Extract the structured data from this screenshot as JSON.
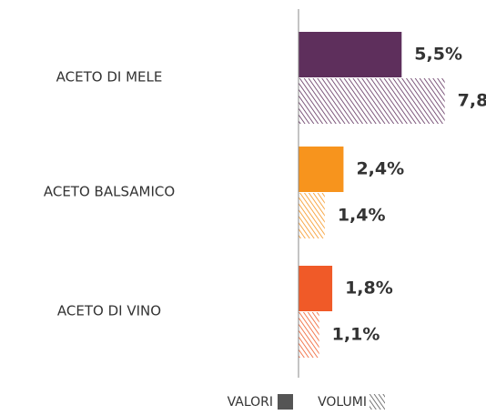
{
  "chart_data": {
    "type": "bar",
    "orientation": "horizontal",
    "categories": [
      "ACETO DI MELE",
      "ACETO BALSAMICO",
      "ACETO DI VINO"
    ],
    "category_colors": [
      "#5e2f5c",
      "#f7941d",
      "#f05a28"
    ],
    "series": [
      {
        "name": "VALORI",
        "color": "#555555",
        "pattern": "solid",
        "values": [
          5.5,
          2.4,
          1.8
        ],
        "value_labels": [
          "5,5%",
          "2,4%",
          "1,8%"
        ]
      },
      {
        "name": "VOLUMI",
        "color": "#555555",
        "pattern": "hatch",
        "values": [
          7.8,
          1.4,
          1.1
        ],
        "value_labels": [
          "7,8",
          "1,4%",
          "1,1%"
        ]
      }
    ],
    "xlim": [
      0,
      10
    ]
  }
}
